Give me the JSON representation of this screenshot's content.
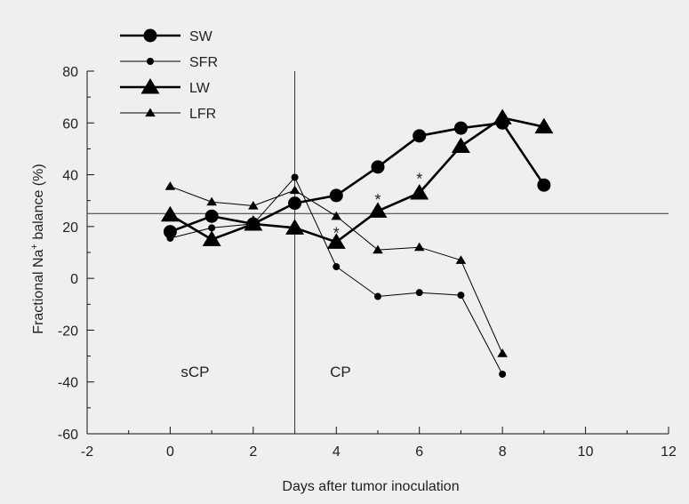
{
  "colors": {
    "background": "#efefef",
    "series": "#000000"
  },
  "chart_data": {
    "type": "line",
    "xlabel": "Days after tumor inoculation",
    "ylabel": "Fractional Na+ balance (%)",
    "xlim": [
      -2,
      12
    ],
    "ylim": [
      -60,
      80
    ],
    "xticks": [
      -2,
      0,
      2,
      4,
      6,
      8,
      10,
      12
    ],
    "yticks": [
      -60,
      -40,
      -20,
      0,
      20,
      40,
      60,
      80
    ],
    "grid": false,
    "legend_position": "top-left",
    "reference_lines": {
      "vertical_x": 3,
      "horizontal_y": 25
    },
    "annotations": [
      {
        "text": "sCP",
        "x": 0.6,
        "y": -38
      },
      {
        "text": "CP",
        "x": 4.1,
        "y": -38
      },
      {
        "text": "*",
        "x": 4,
        "y": 18
      },
      {
        "text": "*",
        "x": 5,
        "y": 31
      },
      {
        "text": "*",
        "x": 6,
        "y": 39
      }
    ],
    "series": [
      {
        "name": "SW",
        "marker": "circle-large",
        "line": "thick",
        "points": [
          [
            0,
            18
          ],
          [
            1,
            24
          ],
          [
            2,
            21
          ],
          [
            3,
            29
          ],
          [
            4,
            32
          ],
          [
            5,
            43
          ],
          [
            6,
            55
          ],
          [
            7,
            58
          ],
          [
            8,
            60
          ],
          [
            9,
            36
          ]
        ]
      },
      {
        "name": "SFR",
        "marker": "circle-small",
        "line": "thin",
        "points": [
          [
            0,
            15.5
          ],
          [
            1,
            19.5
          ],
          [
            2,
            21
          ],
          [
            3,
            39
          ],
          [
            4,
            4.5
          ],
          [
            5,
            -7
          ],
          [
            6,
            -5.5
          ],
          [
            7,
            -6.5
          ],
          [
            8,
            -37
          ]
        ]
      },
      {
        "name": "LW",
        "marker": "triangle-large",
        "line": "thick",
        "points": [
          [
            0,
            24.5
          ],
          [
            1,
            15
          ],
          [
            2,
            21
          ],
          [
            3,
            19.5
          ],
          [
            4,
            14
          ],
          [
            5,
            26
          ],
          [
            6,
            33
          ],
          [
            7,
            51
          ],
          [
            8,
            62
          ],
          [
            9,
            58.5
          ]
        ]
      },
      {
        "name": "LFR",
        "marker": "triangle-small",
        "line": "thin",
        "points": [
          [
            0,
            35.5
          ],
          [
            1,
            29.5
          ],
          [
            2,
            28
          ],
          [
            3,
            34
          ],
          [
            4,
            24
          ],
          [
            5,
            11
          ],
          [
            6,
            12
          ],
          [
            7,
            7
          ],
          [
            8,
            -29
          ]
        ]
      }
    ]
  }
}
